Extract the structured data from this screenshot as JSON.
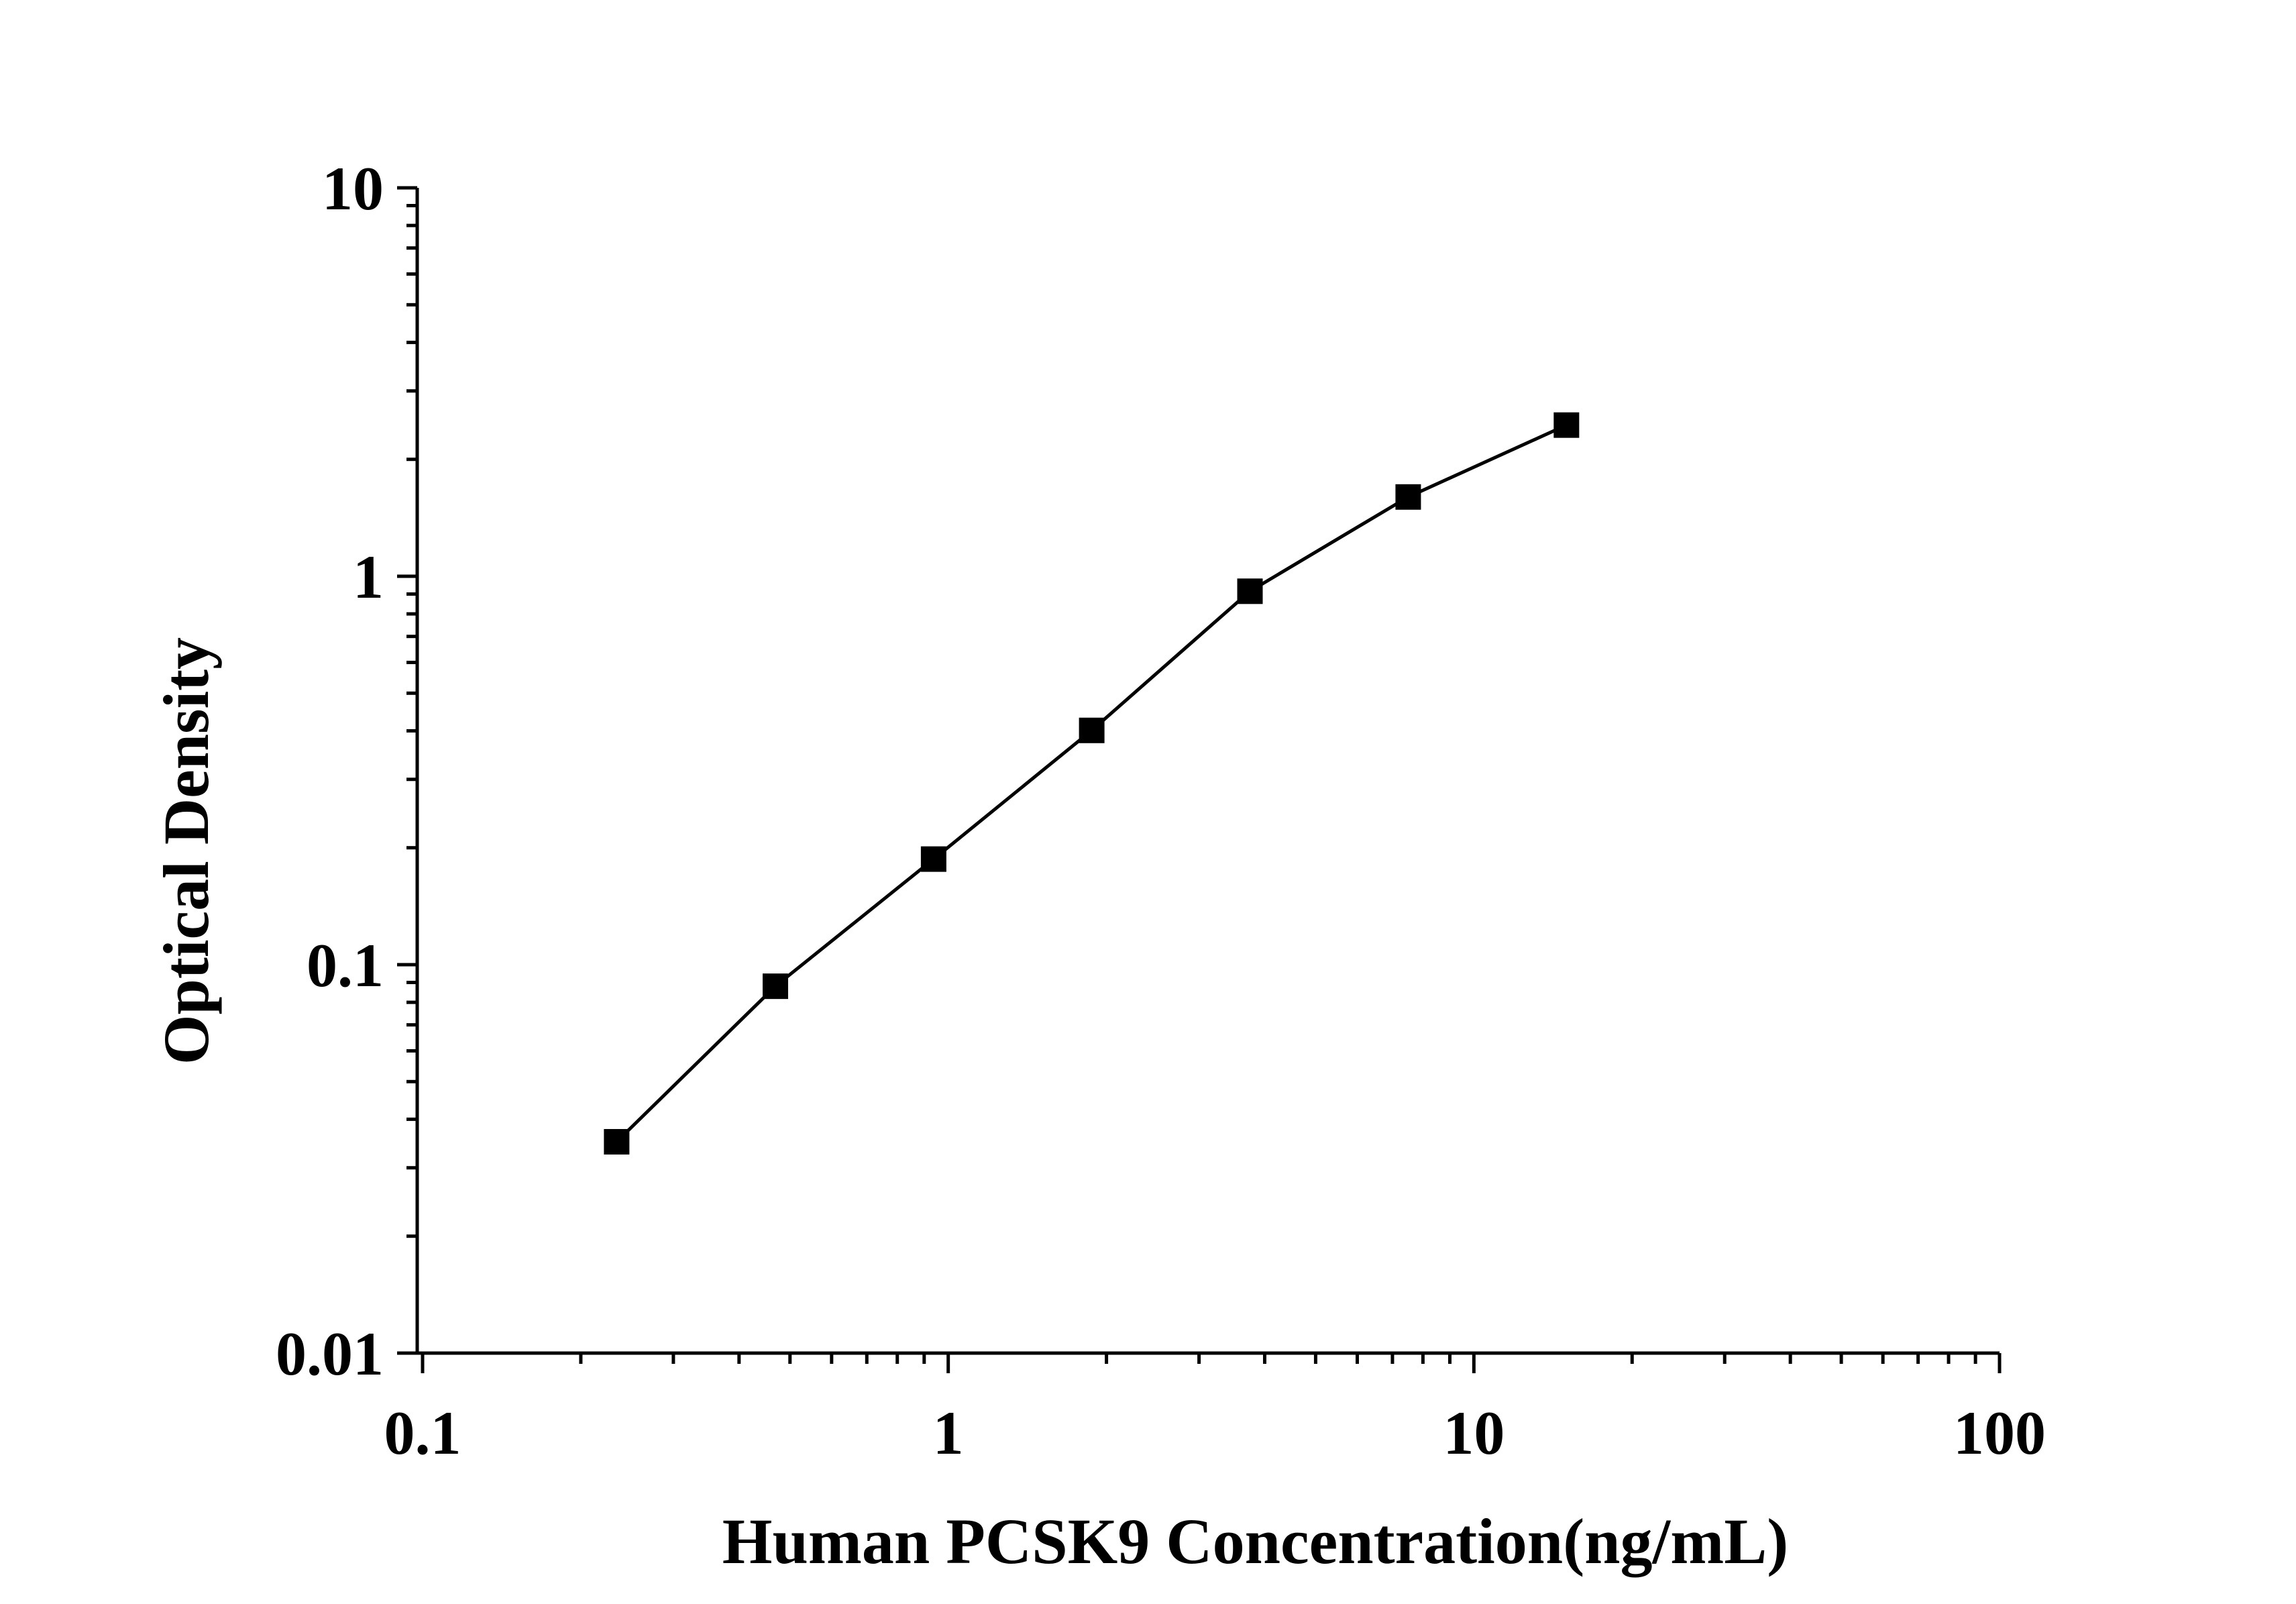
{
  "chart_data": {
    "type": "line",
    "xlabel": "Human PCSK9 Concentration(ng/mL)",
    "ylabel": "Optical Density",
    "xscale": "log",
    "yscale": "log",
    "xlim": [
      0.1,
      100
    ],
    "ylim": [
      0.01,
      10
    ],
    "grid": false,
    "legend": "none",
    "x_ticks": [
      "0.1",
      "1",
      "10",
      "100"
    ],
    "y_ticks": [
      "0.01",
      "0.1",
      "1",
      "10"
    ],
    "marker": "square",
    "color": "#000000",
    "series": [
      {
        "x": [
          0.234,
          0.469,
          0.938,
          1.875,
          3.75,
          7.5,
          15
        ],
        "y": [
          0.035,
          0.088,
          0.187,
          0.401,
          0.915,
          1.6,
          2.45
        ]
      }
    ]
  }
}
